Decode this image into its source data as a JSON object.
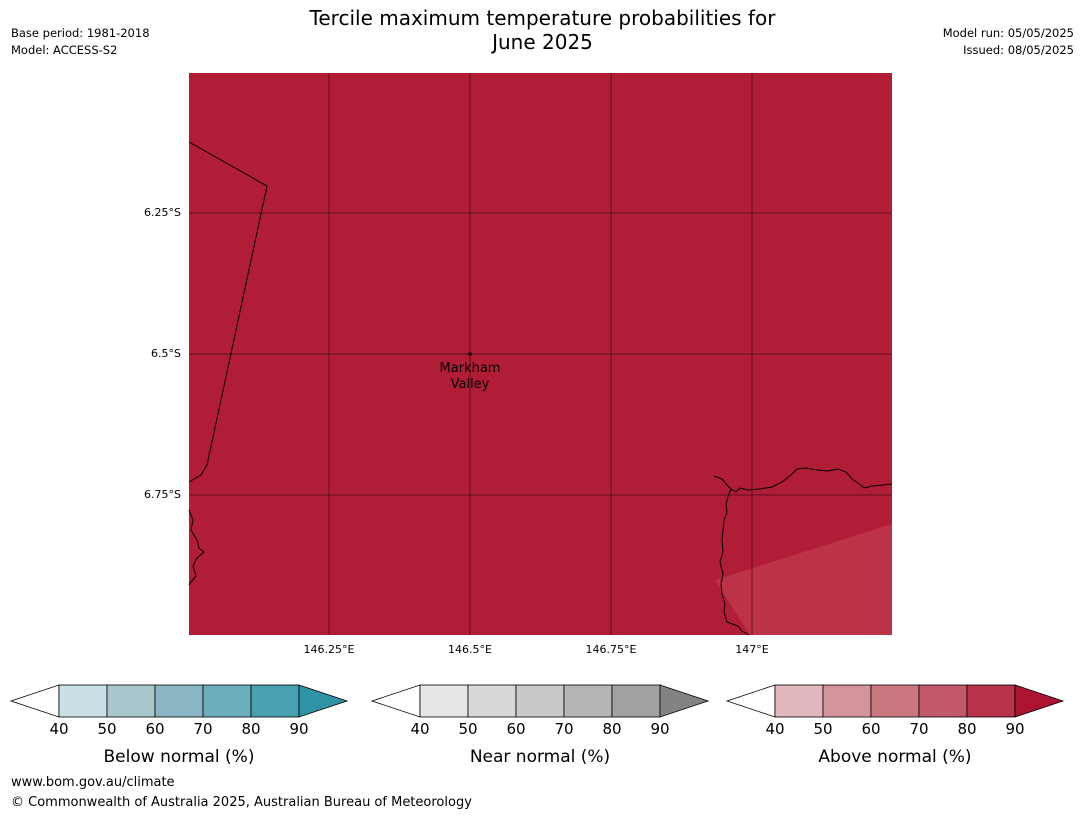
{
  "title": {
    "line1": "Tercile maximum temperature probabilities for",
    "line2": "June 2025"
  },
  "header_left": {
    "base_period": "Base period: 1981-2018",
    "model": "Model: ACCESS-S2"
  },
  "header_right": {
    "model_run": "Model run: 05/05/2025",
    "issued": "Issued: 08/05/2025"
  },
  "map": {
    "fill_color": "#b11d37",
    "lighter_region_color": "#bc3348",
    "place_label": {
      "line1": "Markham",
      "line2": "Valley"
    },
    "lat_ticks": [
      "6.25°S",
      "6.5°S",
      "6.75°S"
    ],
    "lon_ticks": [
      "146.25°E",
      "146.5°E",
      "146.75°E",
      "147°E"
    ]
  },
  "legends": [
    {
      "name": "below",
      "label": "Below normal (%)",
      "ticks": [
        "40",
        "50",
        "60",
        "70",
        "80",
        "90"
      ],
      "colors": [
        "#ffffff",
        "#c9e1e6",
        "#a8c7cd",
        "#8ab6c3",
        "#6caebc",
        "#47a1b1",
        "#2f92a5"
      ]
    },
    {
      "name": "near",
      "label": "Near normal (%)",
      "ticks": [
        "40",
        "50",
        "60",
        "70",
        "80",
        "90"
      ],
      "colors": [
        "#ffffff",
        "#e6e6e6",
        "#d8d8d8",
        "#c9c9c9",
        "#b5b5b5",
        "#a1a1a1",
        "#838383"
      ]
    },
    {
      "name": "above",
      "label": "Above normal (%)",
      "ticks": [
        "40",
        "50",
        "60",
        "70",
        "80",
        "90"
      ],
      "colors": [
        "#ffffff",
        "#e2b7bd",
        "#d5949c",
        "#cb7780",
        "#c25869",
        "#b9334b",
        "#ab1331"
      ]
    }
  ],
  "footer": {
    "url": "www.bom.gov.au/climate",
    "copyright": "© Commonwealth of Australia 2025, Australian Bureau of Meteorology"
  }
}
